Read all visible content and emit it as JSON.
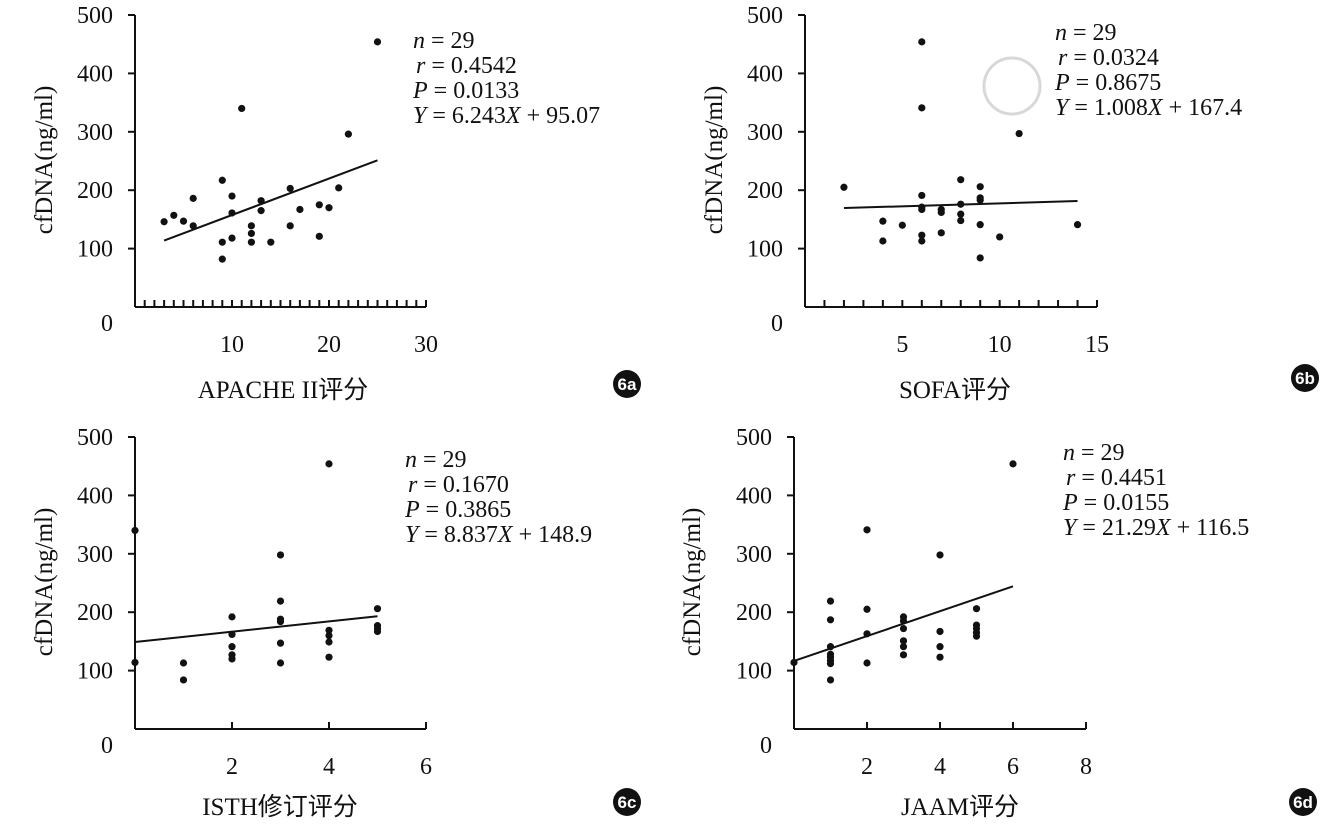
{
  "chart_data": [
    {
      "type": "scatter",
      "panel": "6a",
      "xlabel": "APACHE II评分",
      "ylabel": "cfDNA(ng/ml)",
      "xlim": [
        0,
        30
      ],
      "ylim": [
        0,
        500
      ],
      "xticks": [
        "10",
        "20",
        "30"
      ],
      "xtick_values": [
        10,
        20,
        30
      ],
      "yticks": [
        "0",
        "100",
        "200",
        "300",
        "400",
        "500"
      ],
      "x_minor_step": 1,
      "stats": {
        "n": "29",
        "r": "0.4542",
        "P": "0.0133",
        "eq_slope": "6.243",
        "eq_intercept": "95.07"
      },
      "fit": {
        "slope": 6.243,
        "intercept": 95.07,
        "x_range": [
          3,
          25
        ]
      },
      "points": [
        [
          3,
          146
        ],
        [
          4,
          157
        ],
        [
          5,
          147
        ],
        [
          6,
          186
        ],
        [
          6,
          139
        ],
        [
          9,
          217
        ],
        [
          9,
          111
        ],
        [
          9,
          82
        ],
        [
          10,
          190
        ],
        [
          10,
          161
        ],
        [
          10,
          118
        ],
        [
          11,
          340
        ],
        [
          12,
          139
        ],
        [
          12,
          126
        ],
        [
          12,
          111
        ],
        [
          13,
          182
        ],
        [
          13,
          165
        ],
        [
          14,
          111
        ],
        [
          16,
          203
        ],
        [
          16,
          139
        ],
        [
          17,
          167
        ],
        [
          19,
          175
        ],
        [
          19,
          121
        ],
        [
          20,
          170
        ],
        [
          21,
          204
        ],
        [
          22,
          296
        ],
        [
          25,
          454
        ]
      ]
    },
    {
      "type": "scatter",
      "panel": "6b",
      "xlabel": "SOFA评分",
      "ylabel": "cfDNA(ng/ml)",
      "xlim": [
        0,
        15
      ],
      "ylim": [
        0,
        500
      ],
      "xticks": [
        "5",
        "10",
        "15"
      ],
      "xtick_values": [
        5,
        10,
        15
      ],
      "yticks": [
        "0",
        "100",
        "200",
        "300",
        "400",
        "500"
      ],
      "x_minor_step": 1,
      "stats": {
        "n": "29",
        "r": "0.0324",
        "P": "0.8675",
        "eq_slope": "1.008",
        "eq_intercept": "167.4"
      },
      "fit": {
        "slope": 1.008,
        "intercept": 167.4,
        "x_range": [
          2,
          14
        ]
      },
      "points": [
        [
          2,
          205
        ],
        [
          4,
          147
        ],
        [
          4,
          113
        ],
        [
          5,
          140
        ],
        [
          6,
          454
        ],
        [
          6,
          341
        ],
        [
          6,
          191
        ],
        [
          6,
          171
        ],
        [
          6,
          167
        ],
        [
          6,
          123
        ],
        [
          6,
          113
        ],
        [
          7,
          167
        ],
        [
          7,
          162
        ],
        [
          7,
          127
        ],
        [
          8,
          218
        ],
        [
          8,
          176
        ],
        [
          8,
          159
        ],
        [
          8,
          148
        ],
        [
          9,
          206
        ],
        [
          9,
          187
        ],
        [
          9,
          183
        ],
        [
          9,
          141
        ],
        [
          9,
          84
        ],
        [
          10,
          120
        ],
        [
          11,
          297
        ],
        [
          14,
          141
        ]
      ]
    },
    {
      "type": "scatter",
      "panel": "6c",
      "xlabel": "ISTH修订评分",
      "ylabel": "cfDNA(ng/ml)",
      "xlim": [
        0,
        6
      ],
      "ylim": [
        0,
        500
      ],
      "xticks": [
        "2",
        "4",
        "6"
      ],
      "xtick_values": [
        2,
        4,
        6
      ],
      "yticks": [
        "0",
        "100",
        "200",
        "300",
        "400",
        "500"
      ],
      "x_minor_step": 2,
      "stats": {
        "n": "29",
        "r": "0.1670",
        "P": "0.3865",
        "eq_slope": "8.837",
        "eq_intercept": "148.9"
      },
      "fit": {
        "slope": 8.837,
        "intercept": 148.9,
        "x_range": [
          0,
          5
        ]
      },
      "points": [
        [
          0,
          340
        ],
        [
          0,
          114
        ],
        [
          1,
          113
        ],
        [
          1,
          84
        ],
        [
          2,
          192
        ],
        [
          2,
          162
        ],
        [
          2,
          141
        ],
        [
          2,
          127
        ],
        [
          2,
          120
        ],
        [
          3,
          298
        ],
        [
          3,
          219
        ],
        [
          3,
          188
        ],
        [
          3,
          184
        ],
        [
          3,
          147
        ],
        [
          3,
          113
        ],
        [
          4,
          454
        ],
        [
          4,
          169
        ],
        [
          4,
          160
        ],
        [
          4,
          149
        ],
        [
          4,
          123
        ],
        [
          5,
          206
        ],
        [
          5,
          177
        ],
        [
          5,
          172
        ],
        [
          5,
          167
        ]
      ]
    },
    {
      "type": "scatter",
      "panel": "6d",
      "xlabel": "JAAM评分",
      "ylabel": "cfDNA(ng/ml)",
      "xlim": [
        0,
        8
      ],
      "ylim": [
        0,
        500
      ],
      "xticks": [
        "2",
        "4",
        "6",
        "8"
      ],
      "xtick_values": [
        2,
        4,
        6,
        8
      ],
      "yticks": [
        "0",
        "100",
        "200",
        "300",
        "400",
        "500"
      ],
      "x_minor_step": 2,
      "stats": {
        "n": "29",
        "r": "0.4451",
        "P": "0.0155",
        "eq_slope": "21.29",
        "eq_intercept": "116.5"
      },
      "fit": {
        "slope": 21.29,
        "intercept": 116.5,
        "x_range": [
          0,
          6
        ]
      },
      "points": [
        [
          0,
          114
        ],
        [
          1,
          219
        ],
        [
          1,
          187
        ],
        [
          1,
          141
        ],
        [
          1,
          128
        ],
        [
          1,
          123
        ],
        [
          1,
          117
        ],
        [
          1,
          112
        ],
        [
          1,
          84
        ],
        [
          2,
          341
        ],
        [
          2,
          205
        ],
        [
          2,
          163
        ],
        [
          2,
          113
        ],
        [
          3,
          192
        ],
        [
          3,
          185
        ],
        [
          3,
          172
        ],
        [
          3,
          151
        ],
        [
          3,
          141
        ],
        [
          3,
          127
        ],
        [
          4,
          298
        ],
        [
          4,
          167
        ],
        [
          4,
          141
        ],
        [
          4,
          123
        ],
        [
          5,
          206
        ],
        [
          5,
          178
        ],
        [
          5,
          172
        ],
        [
          5,
          165
        ],
        [
          5,
          159
        ],
        [
          6,
          454
        ]
      ]
    }
  ],
  "colors": {
    "ink": "#111111",
    "badge": "#111111",
    "watermark": "#d8d8d8"
  }
}
